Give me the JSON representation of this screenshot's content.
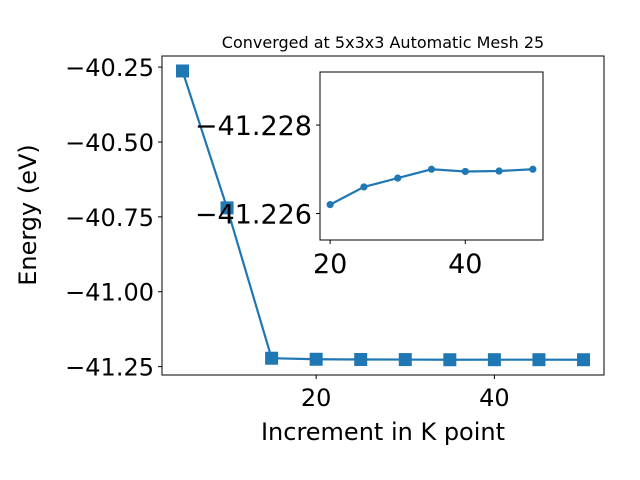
{
  "chart_data": [
    {
      "type": "line",
      "title": "Converged at 5x3x3 Automatic Mesh 25",
      "xlabel": "Increment in K point",
      "ylabel": "Energy (eV)",
      "marker": "square",
      "color": "#1f77b4",
      "xlim": [
        2.7,
        52.3
      ],
      "ylim": [
        -41.278,
        -40.213
      ],
      "xticks": [
        20,
        40
      ],
      "yticks": [
        -40.25,
        -40.5,
        -40.75,
        -41.0,
        -41.25
      ],
      "ytick_labels": [
        "−40.25",
        "−40.50",
        "−40.75",
        "−41.00",
        "−41.25"
      ],
      "xtick_labels": [
        "20",
        "40"
      ],
      "grid": false,
      "series": [
        {
          "x": [
            5,
            10,
            15,
            20,
            25,
            30,
            35,
            40,
            45,
            50
          ],
          "values": [
            -40.263,
            -40.72,
            -41.222,
            -41.2255,
            -41.2262,
            -41.2265,
            -41.227,
            -41.2269,
            -41.2269,
            -41.227
          ]
        }
      ]
    },
    {
      "type": "line",
      "title": "",
      "xlabel": "",
      "ylabel": "",
      "marker": "circle",
      "color": "#1f77b4",
      "xlim": [
        18.5,
        51.5
      ],
      "ylim": [
        -41.2254,
        -41.2292
      ],
      "xticks": [
        20,
        40
      ],
      "yticks": [
        -41.228,
        -41.226
      ],
      "ytick_labels": [
        "−41.228",
        "−41.226"
      ],
      "xtick_labels": [
        "20",
        "40"
      ],
      "grid": false,
      "series": [
        {
          "x": [
            20,
            25,
            30,
            35,
            40,
            45,
            50
          ],
          "values": [
            -41.2262,
            -41.2266,
            -41.2268,
            -41.227,
            -41.22695,
            -41.22696,
            -41.227
          ]
        }
      ]
    }
  ]
}
